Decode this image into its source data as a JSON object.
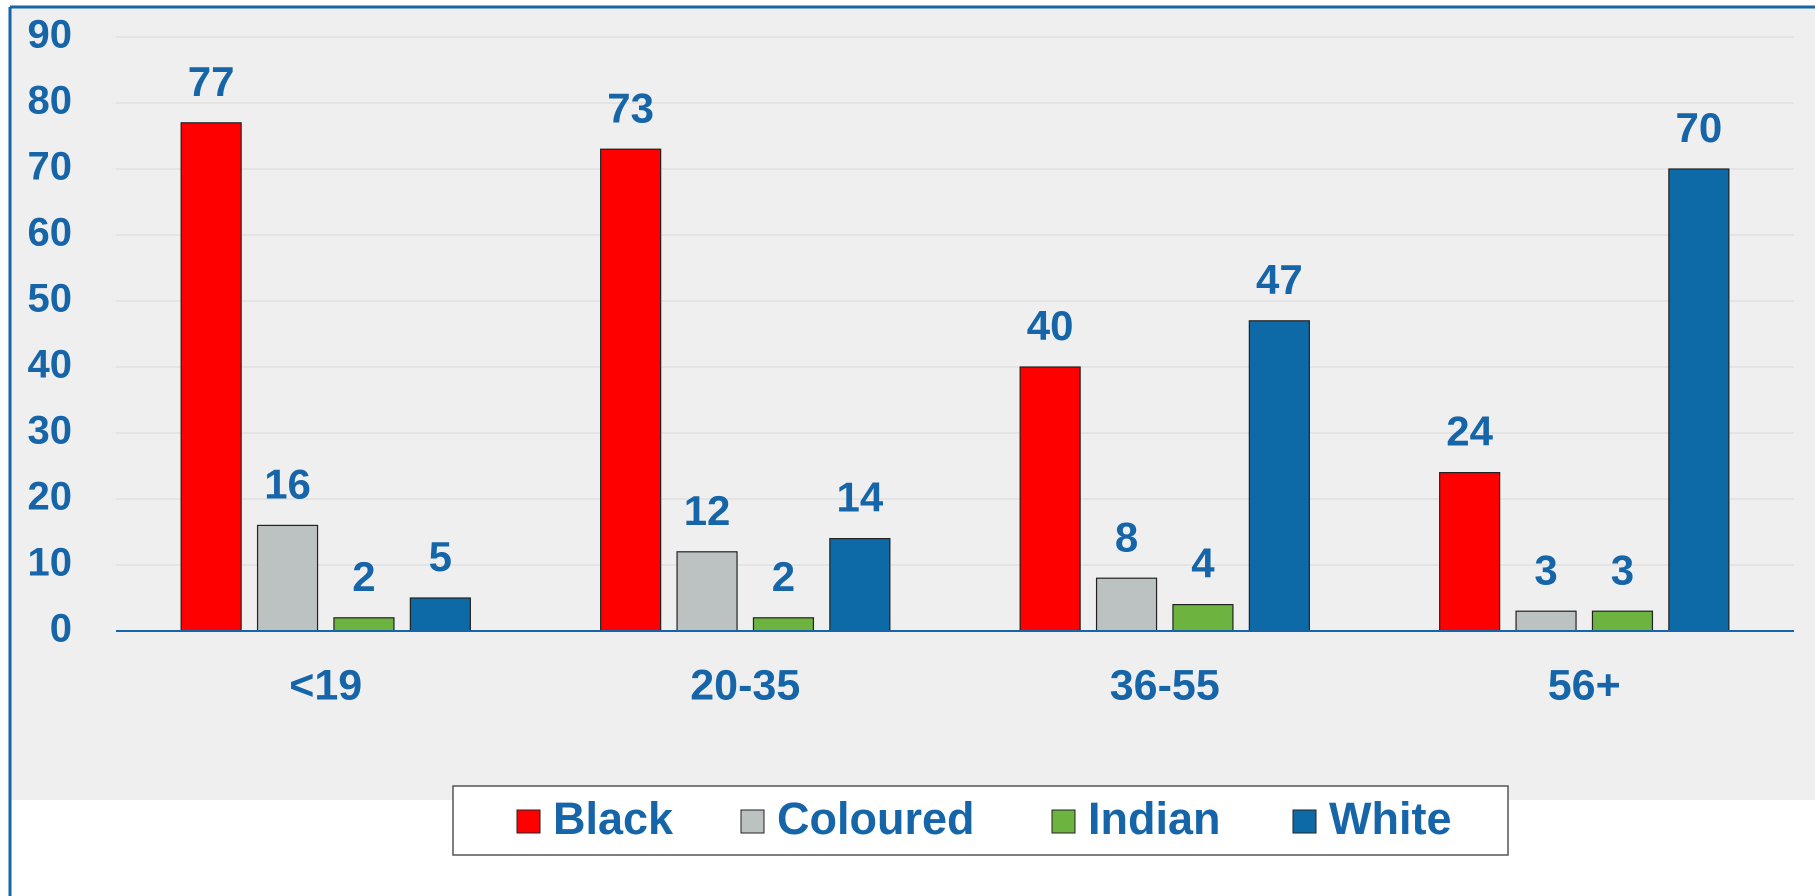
{
  "chart_data": {
    "type": "bar",
    "categories": [
      "<19",
      "20-35",
      "36-55",
      "56+"
    ],
    "series": [
      {
        "name": "Black",
        "color": "#ff0000",
        "values": [
          77,
          73,
          40,
          24
        ]
      },
      {
        "name": "Coloured",
        "color": "#bcc2c1",
        "values": [
          16,
          12,
          8,
          3
        ]
      },
      {
        "name": "Indian",
        "color": "#6db33f",
        "values": [
          2,
          2,
          4,
          3
        ]
      },
      {
        "name": "White",
        "color": "#0e6aa6",
        "values": [
          5,
          14,
          47,
          70
        ]
      }
    ],
    "ylim": [
      0,
      90
    ],
    "yticks": [
      0,
      10,
      20,
      30,
      40,
      50,
      60,
      70,
      80,
      90
    ],
    "grid": true,
    "legend": "bottom"
  }
}
